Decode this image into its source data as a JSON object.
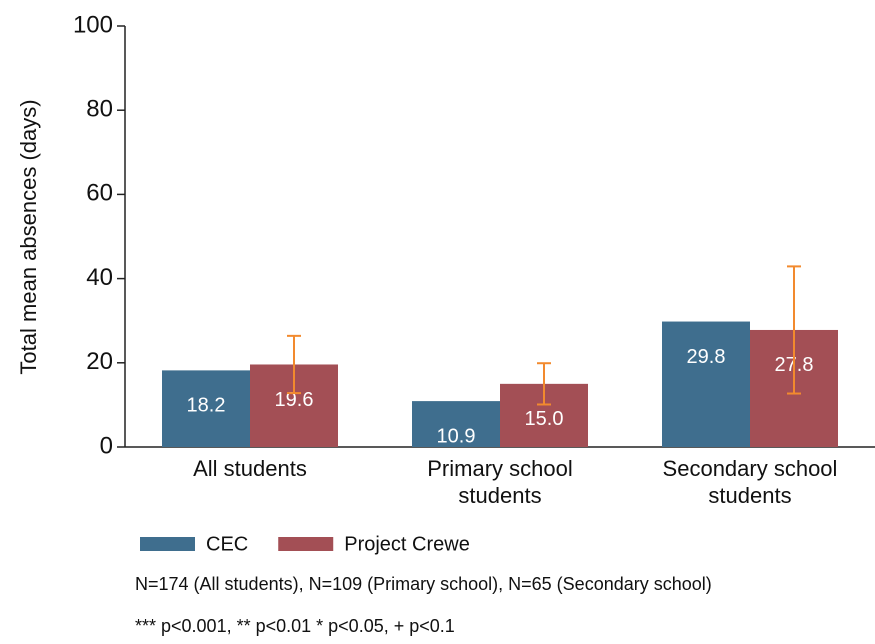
{
  "chart_data": {
    "type": "bar",
    "y_label": "Total mean absences (days)",
    "categories": [
      "All students",
      "Primary school students",
      "Secondary school students"
    ],
    "series": [
      {
        "name": "CEC",
        "color": "#3f6e8e",
        "values": [
          18.2,
          10.9,
          29.8
        ],
        "value_labels": [
          "18.2",
          "10.9",
          "29.8"
        ]
      },
      {
        "name": "Project Crewe",
        "color": "#a34f55",
        "values": [
          19.6,
          15,
          27.8
        ],
        "value_labels": [
          "19.6",
          "15.0",
          "27.8"
        ],
        "errors": [
          6.8,
          4.9,
          15.1
        ],
        "error_color": "#f28a2e"
      }
    ],
    "ylim": [
      0,
      100
    ],
    "yticks": [
      0,
      20,
      40,
      60,
      80,
      100
    ],
    "grid": false,
    "notes": [
      "N=174 (All students), N=109 (Primary school), N=65 (Secondary school)",
      "*** p<0.001, ** p<0.01 * p<0.05, + p<0.1"
    ]
  }
}
